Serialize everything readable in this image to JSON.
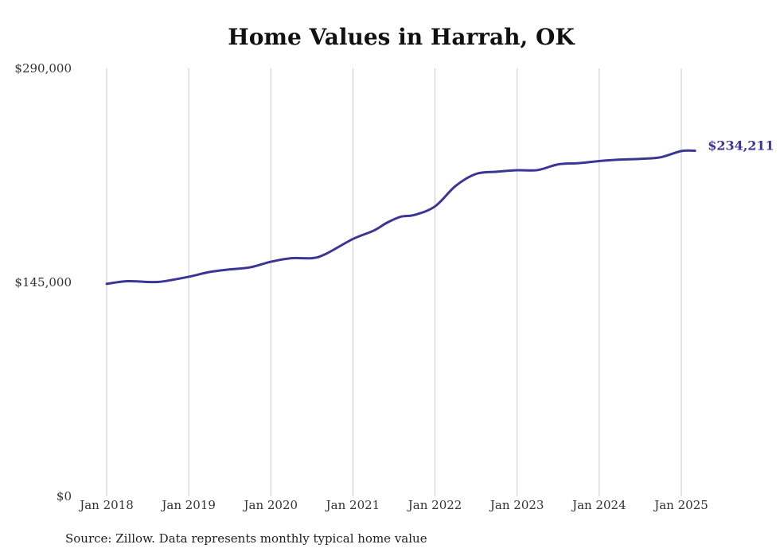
{
  "chart_data": {
    "type": "line",
    "title": "Home Values in Harrah, OK",
    "xlabel": "",
    "ylabel": "",
    "ylim": [
      0,
      290000
    ],
    "y_ticks": [
      {
        "value": 0,
        "label": "$0"
      },
      {
        "value": 145000,
        "label": "$145,000"
      },
      {
        "value": 290000,
        "label": "$290,000"
      }
    ],
    "x_ticks": [
      {
        "value": 2018,
        "label": "Jan 2018"
      },
      {
        "value": 2019,
        "label": "Jan 2019"
      },
      {
        "value": 2020,
        "label": "Jan 2020"
      },
      {
        "value": 2021,
        "label": "Jan 2021"
      },
      {
        "value": 2022,
        "label": "Jan 2022"
      },
      {
        "value": 2023,
        "label": "Jan 2023"
      },
      {
        "value": 2024,
        "label": "Jan 2024"
      },
      {
        "value": 2025,
        "label": "Jan 2025"
      }
    ],
    "grid": "vertical",
    "line_color": "#3b3696",
    "series": [
      {
        "x": [
          "Jan 2018",
          "Apr 2018",
          "Jul 2018",
          "Sep 2018",
          "Jan 2019",
          "Apr 2019",
          "Jul 2019",
          "Oct 2019",
          "Jan 2020",
          "Apr 2020",
          "Jul 2020",
          "Sep 2020",
          "Jan 2021",
          "Apr 2021",
          "Jun 2021",
          "Aug 2021",
          "Oct 2021",
          "Jan 2022",
          "Apr 2022",
          "Jul 2022",
          "Oct 2022",
          "Jan 2023",
          "Apr 2023",
          "Jul 2023",
          "Oct 2023",
          "Jan 2024",
          "Apr 2024",
          "Jul 2024",
          "Oct 2024",
          "Jan 2025",
          "Mar 2025"
        ],
        "values": [
          144000,
          145800,
          145300,
          145500,
          148800,
          152000,
          153800,
          155200,
          159000,
          161400,
          161400,
          164200,
          174400,
          180000,
          185500,
          189500,
          190700,
          196500,
          210300,
          218500,
          220000,
          221000,
          221100,
          225000,
          225800,
          227200,
          228200,
          228700,
          229800,
          234000,
          234211
        ]
      }
    ],
    "end_label": "$234,211"
  },
  "source_note": "Source: Zillow. Data represents monthly typical home value"
}
